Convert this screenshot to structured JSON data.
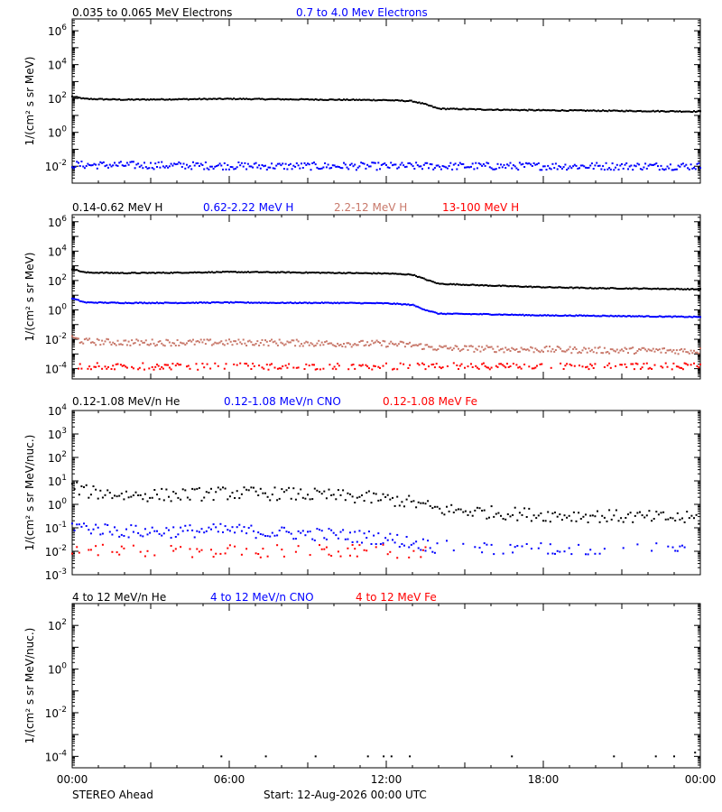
{
  "footer": {
    "spacecraft": "STEREO Ahead",
    "start": "Start: 12-Aug-2026 00:00 UTC"
  },
  "x_ticks": [
    "00:00",
    "06:00",
    "12:00",
    "18:00",
    "00:00"
  ],
  "chart_data": [
    {
      "type": "scatter",
      "ylabel": "1/(cm² s sr MeV)",
      "y_scale": "log",
      "x_range_hours": [
        0,
        24
      ],
      "ylim": [
        0.001,
        5000000
      ],
      "y_ticks": [
        {
          "label": "10",
          "exp": "6",
          "value": 1000000
        },
        {
          "label": "10",
          "exp": "4",
          "value": 10000
        },
        {
          "label": "10",
          "exp": "2",
          "value": 100
        },
        {
          "label": "10",
          "exp": "0",
          "value": 1
        },
        {
          "label": "10",
          "exp": "-2",
          "value": 0.01
        }
      ],
      "series": [
        {
          "name": "0.035 to 0.065 MeV Electrons",
          "color": "#000000",
          "x": [
            0,
            0.5,
            2,
            4,
            6,
            8,
            10,
            12,
            13,
            13.5,
            14,
            16,
            18,
            20,
            22,
            24
          ],
          "y": [
            130,
            95,
            85,
            90,
            95,
            90,
            85,
            80,
            70,
            45,
            25,
            22,
            20,
            19,
            18,
            17
          ]
        },
        {
          "name": "0.7 to 4.0 Mev Electrons",
          "color": "#0000ff",
          "x": [
            0,
            4,
            8,
            12,
            16,
            20,
            24
          ],
          "y": [
            0.012,
            0.011,
            0.01,
            0.01,
            0.01,
            0.01,
            0.01
          ]
        }
      ]
    },
    {
      "type": "scatter",
      "ylabel": "1/(cm² s sr MeV)",
      "y_scale": "log",
      "x_range_hours": [
        0,
        24
      ],
      "ylim": [
        2e-05,
        3000000
      ],
      "y_ticks": [
        {
          "label": "10",
          "exp": "6",
          "value": 1000000
        },
        {
          "label": "10",
          "exp": "4",
          "value": 10000
        },
        {
          "label": "10",
          "exp": "2",
          "value": 100
        },
        {
          "label": "10",
          "exp": "0",
          "value": 1
        },
        {
          "label": "10",
          "exp": "-2",
          "value": 0.01
        },
        {
          "label": "10",
          "exp": "-4",
          "value": 0.0001
        }
      ],
      "series": [
        {
          "name": "0.14-0.62 MeV H",
          "color": "#000000",
          "x": [
            0,
            0.5,
            2,
            4,
            6,
            8,
            10,
            12,
            13,
            13.5,
            14,
            16,
            18,
            20,
            22,
            24
          ],
          "y": [
            600,
            350,
            320,
            340,
            380,
            360,
            330,
            300,
            250,
            120,
            60,
            45,
            35,
            30,
            28,
            25
          ]
        },
        {
          "name": "0.62-2.22 MeV H",
          "color": "#0000ff",
          "x": [
            0,
            0.5,
            2,
            4,
            6,
            8,
            10,
            12,
            13,
            13.5,
            14,
            16,
            18,
            20,
            22,
            24
          ],
          "y": [
            6,
            3.2,
            3,
            3,
            3.2,
            3,
            3,
            2.8,
            2.2,
            1,
            0.55,
            0.5,
            0.42,
            0.4,
            0.36,
            0.33
          ]
        },
        {
          "name": "2.2-12 MeV H",
          "color": "#c8786a",
          "x": [
            0,
            0.5,
            2,
            4,
            6,
            8,
            10,
            12,
            13,
            14,
            16,
            18,
            20,
            22,
            24
          ],
          "y": [
            0.012,
            0.007,
            0.006,
            0.006,
            0.006,
            0.006,
            0.005,
            0.005,
            0.004,
            0.0025,
            0.0022,
            0.002,
            0.0018,
            0.0017,
            0.0016
          ]
        },
        {
          "name": "13-100 MeV H",
          "color": "#ff0000",
          "x": [
            0,
            4,
            8,
            12,
            16,
            20,
            24
          ],
          "y": [
            0.00015,
            0.00014,
            0.00014,
            0.00014,
            0.00015,
            0.00014,
            0.00015
          ]
        }
      ]
    },
    {
      "type": "scatter",
      "ylabel": "1/(cm² s sr MeV/nuc.)",
      "y_scale": "log",
      "x_range_hours": [
        0,
        24
      ],
      "ylim": [
        0.001,
        10000
      ],
      "y_ticks": [
        {
          "label": "10",
          "exp": "4",
          "value": 10000
        },
        {
          "label": "10",
          "exp": "3",
          "value": 1000
        },
        {
          "label": "10",
          "exp": "2",
          "value": 100
        },
        {
          "label": "10",
          "exp": "1",
          "value": 10
        },
        {
          "label": "10",
          "exp": "0",
          "value": 1
        },
        {
          "label": "10",
          "exp": "-1",
          "value": 0.1
        },
        {
          "label": "10",
          "exp": "-2",
          "value": 0.01
        },
        {
          "label": "10",
          "exp": "-3",
          "value": 0.001
        }
      ],
      "series": [
        {
          "name": "0.12-1.08 MeV/n He",
          "color": "#000000",
          "x": [
            0,
            0.5,
            2,
            4,
            6,
            8,
            10,
            11,
            12,
            13,
            14,
            16,
            18,
            20,
            22,
            24
          ],
          "y": [
            6,
            3.5,
            2.5,
            2.5,
            3,
            2.8,
            2.3,
            2,
            1.7,
            1.2,
            0.6,
            0.45,
            0.35,
            0.32,
            0.28,
            0.25
          ]
        },
        {
          "name": "0.12-1.08 MeV/n CNO",
          "color": "#0000ff",
          "x": [
            0,
            2,
            4,
            6,
            8,
            10,
            12,
            14,
            16,
            18,
            20,
            22,
            24
          ],
          "y": [
            0.12,
            0.07,
            0.07,
            0.08,
            0.06,
            0.05,
            0.035,
            0.015,
            0.013,
            0.012,
            0.012,
            0.012,
            0.012
          ]
        },
        {
          "name": "0.12-1.08 MeV Fe",
          "color": "#ff0000",
          "x": [
            0,
            4,
            8,
            12,
            13.5
          ],
          "y": [
            0.01,
            0.01,
            0.01,
            0.01,
            0.01
          ]
        }
      ]
    },
    {
      "type": "scatter",
      "ylabel": "1/(cm² s sr MeV/nuc.)",
      "y_scale": "log",
      "x_range_hours": [
        0,
        24
      ],
      "ylim": [
        3e-05,
        1000
      ],
      "y_ticks": [
        {
          "label": "10",
          "exp": "2",
          "value": 100
        },
        {
          "label": "10",
          "exp": "0",
          "value": 1
        },
        {
          "label": "10",
          "exp": "-2",
          "value": 0.01
        },
        {
          "label": "10",
          "exp": "-4",
          "value": 0.0001
        }
      ],
      "series": [
        {
          "name": "4 to 12 MeV/n He",
          "color": "#000000",
          "x": [
            5.7,
            7.4,
            9.3,
            11.3,
            11.9,
            12.2,
            12.9,
            16.8,
            20.7,
            22.3,
            23.0,
            23.8
          ],
          "y": [
            0.0001,
            0.0001,
            0.0001,
            0.0001,
            0.0001,
            0.0001,
            0.0001,
            0.0001,
            0.0001,
            0.0001,
            0.0001,
            0.00015
          ]
        },
        {
          "name": "4 to 12 MeV/n CNO",
          "color": "#0000ff",
          "x": [],
          "y": []
        },
        {
          "name": "4 to 12 MeV Fe",
          "color": "#ff0000",
          "x": [],
          "y": []
        }
      ]
    }
  ]
}
